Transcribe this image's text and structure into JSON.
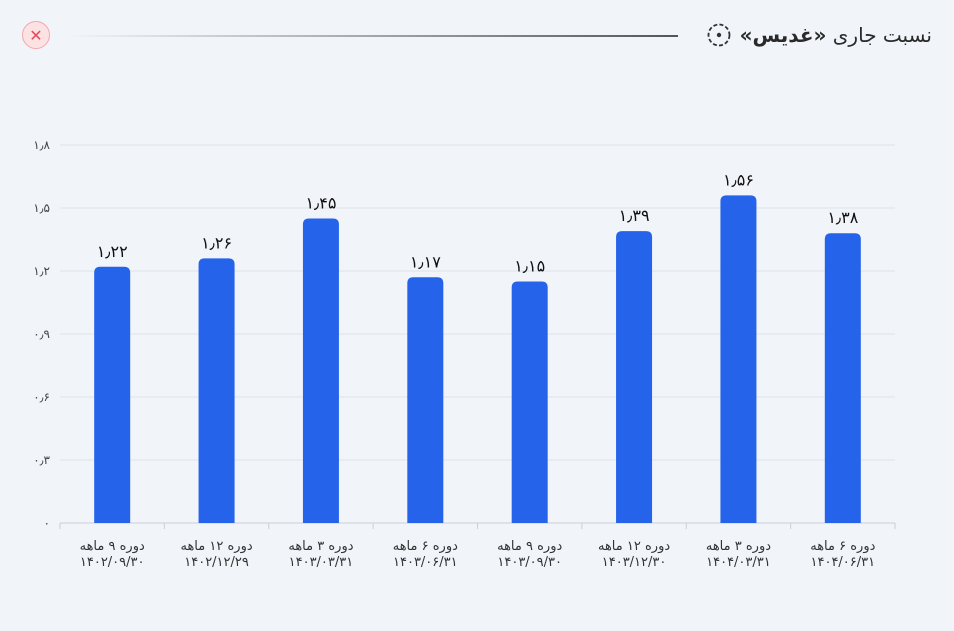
{
  "header": {
    "title_prefix": "نسبت جاری",
    "title_symbol": "«غدیس»",
    "title_icon": "circle-dots-icon",
    "close_icon": "close-icon",
    "close_glyph": "✕",
    "accent_color": "#2563eb",
    "close_color": "#e24b5b"
  },
  "chart_data": {
    "type": "bar",
    "title": "",
    "xlabel": "",
    "ylabel": "",
    "ylim": [
      0,
      1.8
    ],
    "yticks": [
      0,
      0.3,
      0.6,
      0.9,
      1.2,
      1.5,
      1.8
    ],
    "ytick_labels": [
      "۰",
      "۰٫۳",
      "۰٫۶",
      "۰٫۹",
      "۱٫۲",
      "۱٫۵",
      "۱٫۸"
    ],
    "grid": true,
    "bar_color": "#2563eb",
    "categories": [
      {
        "line1": "دوره ۹ ماهه",
        "line2": "۱۴۰۲/۰۹/۳۰"
      },
      {
        "line1": "دوره ۱۲ ماهه",
        "line2": "۱۴۰۲/۱۲/۲۹"
      },
      {
        "line1": "دوره ۳ ماهه",
        "line2": "۱۴۰۳/۰۳/۳۱"
      },
      {
        "line1": "دوره ۶ ماهه",
        "line2": "۱۴۰۳/۰۶/۳۱"
      },
      {
        "line1": "دوره ۹ ماهه",
        "line2": "۱۴۰۳/۰۹/۳۰"
      },
      {
        "line1": "دوره ۱۲ ماهه",
        "line2": "۱۴۰۳/۱۲/۳۰"
      },
      {
        "line1": "دوره ۳ ماهه",
        "line2": "۱۴۰۴/۰۳/۳۱"
      },
      {
        "line1": "دوره ۶ ماهه",
        "line2": "۱۴۰۴/۰۶/۳۱"
      }
    ],
    "values": [
      1.22,
      1.26,
      1.45,
      1.17,
      1.15,
      1.39,
      1.56,
      1.38
    ],
    "value_labels": [
      "۱٫۲۲",
      "۱٫۲۶",
      "۱٫۴۵",
      "۱٫۱۷",
      "۱٫۱۵",
      "۱٫۳۹",
      "۱٫۵۶",
      "۱٫۳۸"
    ]
  }
}
